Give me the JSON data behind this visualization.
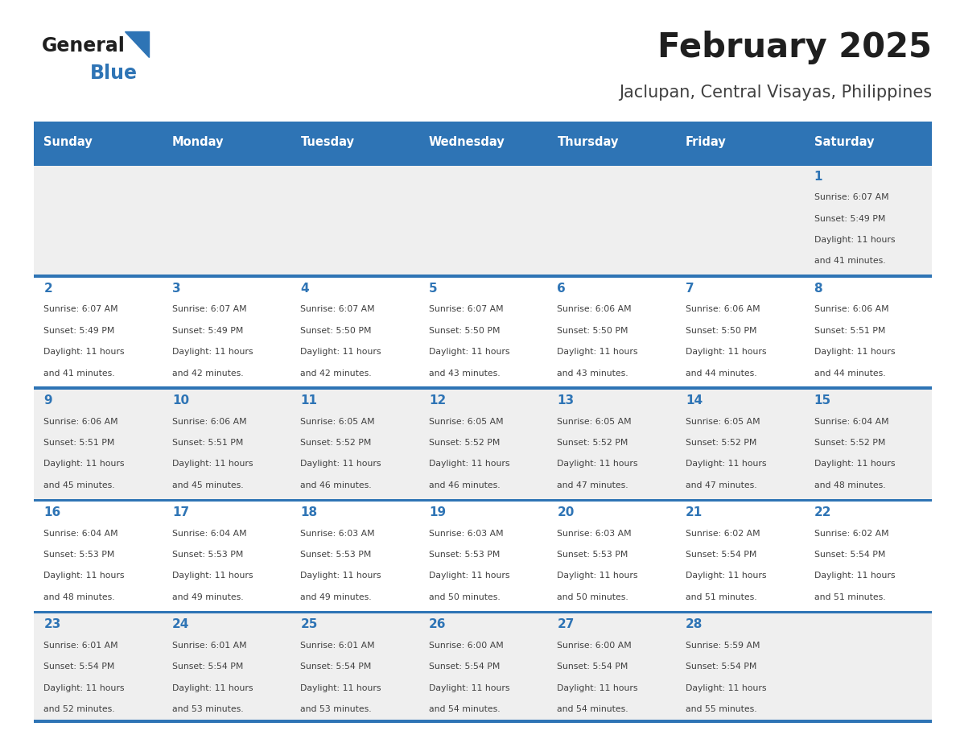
{
  "title": "February 2025",
  "subtitle": "Jaclupan, Central Visayas, Philippines",
  "days_of_week": [
    "Sunday",
    "Monday",
    "Tuesday",
    "Wednesday",
    "Thursday",
    "Friday",
    "Saturday"
  ],
  "header_bg": "#2E74B5",
  "header_text": "#FFFFFF",
  "row_bg_even": "#EFEFEF",
  "row_bg_odd": "#FFFFFF",
  "cell_border": "#2E74B5",
  "day_number_color": "#2E74B5",
  "info_text_color": "#404040",
  "title_color": "#1F1F1F",
  "subtitle_color": "#404040",
  "logo_general_color": "#1F1F1F",
  "logo_blue_color": "#2E74B5",
  "calendar_data": {
    "1": {
      "sunrise": "6:07 AM",
      "sunset": "5:49 PM",
      "daylight_line1": "Daylight: 11 hours",
      "daylight_line2": "and 41 minutes."
    },
    "2": {
      "sunrise": "6:07 AM",
      "sunset": "5:49 PM",
      "daylight_line1": "Daylight: 11 hours",
      "daylight_line2": "and 41 minutes."
    },
    "3": {
      "sunrise": "6:07 AM",
      "sunset": "5:49 PM",
      "daylight_line1": "Daylight: 11 hours",
      "daylight_line2": "and 42 minutes."
    },
    "4": {
      "sunrise": "6:07 AM",
      "sunset": "5:50 PM",
      "daylight_line1": "Daylight: 11 hours",
      "daylight_line2": "and 42 minutes."
    },
    "5": {
      "sunrise": "6:07 AM",
      "sunset": "5:50 PM",
      "daylight_line1": "Daylight: 11 hours",
      "daylight_line2": "and 43 minutes."
    },
    "6": {
      "sunrise": "6:06 AM",
      "sunset": "5:50 PM",
      "daylight_line1": "Daylight: 11 hours",
      "daylight_line2": "and 43 minutes."
    },
    "7": {
      "sunrise": "6:06 AM",
      "sunset": "5:50 PM",
      "daylight_line1": "Daylight: 11 hours",
      "daylight_line2": "and 44 minutes."
    },
    "8": {
      "sunrise": "6:06 AM",
      "sunset": "5:51 PM",
      "daylight_line1": "Daylight: 11 hours",
      "daylight_line2": "and 44 minutes."
    },
    "9": {
      "sunrise": "6:06 AM",
      "sunset": "5:51 PM",
      "daylight_line1": "Daylight: 11 hours",
      "daylight_line2": "and 45 minutes."
    },
    "10": {
      "sunrise": "6:06 AM",
      "sunset": "5:51 PM",
      "daylight_line1": "Daylight: 11 hours",
      "daylight_line2": "and 45 minutes."
    },
    "11": {
      "sunrise": "6:05 AM",
      "sunset": "5:52 PM",
      "daylight_line1": "Daylight: 11 hours",
      "daylight_line2": "and 46 minutes."
    },
    "12": {
      "sunrise": "6:05 AM",
      "sunset": "5:52 PM",
      "daylight_line1": "Daylight: 11 hours",
      "daylight_line2": "and 46 minutes."
    },
    "13": {
      "sunrise": "6:05 AM",
      "sunset": "5:52 PM",
      "daylight_line1": "Daylight: 11 hours",
      "daylight_line2": "and 47 minutes."
    },
    "14": {
      "sunrise": "6:05 AM",
      "sunset": "5:52 PM",
      "daylight_line1": "Daylight: 11 hours",
      "daylight_line2": "and 47 minutes."
    },
    "15": {
      "sunrise": "6:04 AM",
      "sunset": "5:52 PM",
      "daylight_line1": "Daylight: 11 hours",
      "daylight_line2": "and 48 minutes."
    },
    "16": {
      "sunrise": "6:04 AM",
      "sunset": "5:53 PM",
      "daylight_line1": "Daylight: 11 hours",
      "daylight_line2": "and 48 minutes."
    },
    "17": {
      "sunrise": "6:04 AM",
      "sunset": "5:53 PM",
      "daylight_line1": "Daylight: 11 hours",
      "daylight_line2": "and 49 minutes."
    },
    "18": {
      "sunrise": "6:03 AM",
      "sunset": "5:53 PM",
      "daylight_line1": "Daylight: 11 hours",
      "daylight_line2": "and 49 minutes."
    },
    "19": {
      "sunrise": "6:03 AM",
      "sunset": "5:53 PM",
      "daylight_line1": "Daylight: 11 hours",
      "daylight_line2": "and 50 minutes."
    },
    "20": {
      "sunrise": "6:03 AM",
      "sunset": "5:53 PM",
      "daylight_line1": "Daylight: 11 hours",
      "daylight_line2": "and 50 minutes."
    },
    "21": {
      "sunrise": "6:02 AM",
      "sunset": "5:54 PM",
      "daylight_line1": "Daylight: 11 hours",
      "daylight_line2": "and 51 minutes."
    },
    "22": {
      "sunrise": "6:02 AM",
      "sunset": "5:54 PM",
      "daylight_line1": "Daylight: 11 hours",
      "daylight_line2": "and 51 minutes."
    },
    "23": {
      "sunrise": "6:01 AM",
      "sunset": "5:54 PM",
      "daylight_line1": "Daylight: 11 hours",
      "daylight_line2": "and 52 minutes."
    },
    "24": {
      "sunrise": "6:01 AM",
      "sunset": "5:54 PM",
      "daylight_line1": "Daylight: 11 hours",
      "daylight_line2": "and 53 minutes."
    },
    "25": {
      "sunrise": "6:01 AM",
      "sunset": "5:54 PM",
      "daylight_line1": "Daylight: 11 hours",
      "daylight_line2": "and 53 minutes."
    },
    "26": {
      "sunrise": "6:00 AM",
      "sunset": "5:54 PM",
      "daylight_line1": "Daylight: 11 hours",
      "daylight_line2": "and 54 minutes."
    },
    "27": {
      "sunrise": "6:00 AM",
      "sunset": "5:54 PM",
      "daylight_line1": "Daylight: 11 hours",
      "daylight_line2": "and 54 minutes."
    },
    "28": {
      "sunrise": "5:59 AM",
      "sunset": "5:54 PM",
      "daylight_line1": "Daylight: 11 hours",
      "daylight_line2": "and 55 minutes."
    }
  },
  "weeks": [
    [
      null,
      null,
      null,
      null,
      null,
      null,
      1
    ],
    [
      2,
      3,
      4,
      5,
      6,
      7,
      8
    ],
    [
      9,
      10,
      11,
      12,
      13,
      14,
      15
    ],
    [
      16,
      17,
      18,
      19,
      20,
      21,
      22
    ],
    [
      23,
      24,
      25,
      26,
      27,
      28,
      null
    ]
  ]
}
